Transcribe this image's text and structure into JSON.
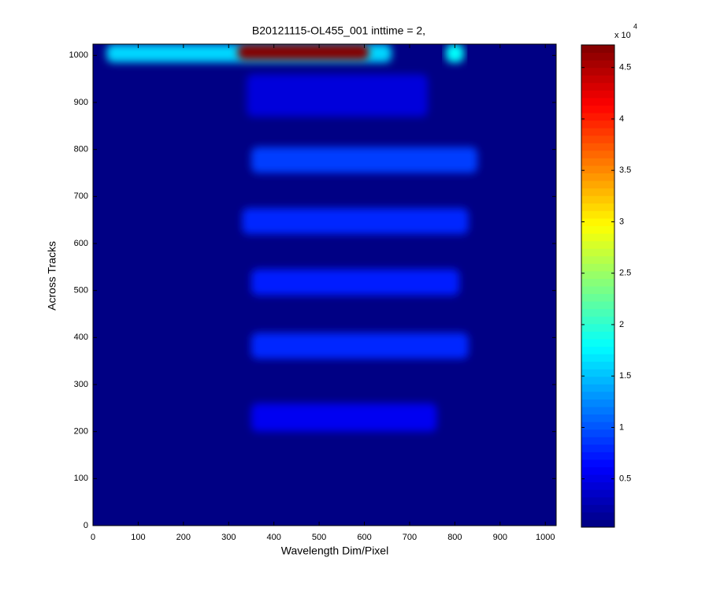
{
  "chart_data": {
    "type": "heatmap",
    "title": "B20121115-OL455_001 inttime = 2,",
    "x_label": "Wavelength Dim/Pixel",
    "y_label": "Across Tracks",
    "xlim": [
      0,
      1024
    ],
    "ylim": [
      0,
      1024
    ],
    "xticks": [
      0,
      100,
      200,
      300,
      400,
      500,
      600,
      700,
      800,
      900,
      1000
    ],
    "yticks": [
      0,
      100,
      200,
      300,
      400,
      500,
      600,
      700,
      800,
      900,
      1000
    ],
    "colormap": "jet",
    "clim": [
      0.03,
      4.72
    ],
    "cticks": [
      0.5,
      1,
      1.5,
      2,
      2.5,
      3,
      3.5,
      4,
      4.5
    ],
    "colorbar_scale": {
      "base": "x 10",
      "exponent": "4"
    },
    "background": 0.05,
    "regions": [
      {
        "x": [
          30,
          660
        ],
        "y": [
          985,
          1024
        ],
        "value": 1.6
      },
      {
        "x": [
          320,
          610
        ],
        "y": [
          990,
          1024
        ],
        "value": 4.7
      },
      {
        "x": [
          780,
          820
        ],
        "y": [
          985,
          1024
        ],
        "value": 1.8
      },
      {
        "x": [
          340,
          740
        ],
        "y": [
          870,
          960
        ],
        "value": 0.45
      },
      {
        "x": [
          350,
          850
        ],
        "y": [
          750,
          805
        ],
        "value": 0.9
      },
      {
        "x": [
          330,
          830
        ],
        "y": [
          620,
          675
        ],
        "value": 0.8
      },
      {
        "x": [
          350,
          810
        ],
        "y": [
          490,
          545
        ],
        "value": 0.75
      },
      {
        "x": [
          350,
          830
        ],
        "y": [
          355,
          410
        ],
        "value": 0.8
      },
      {
        "x": [
          350,
          760
        ],
        "y": [
          200,
          260
        ],
        "value": 0.55
      }
    ]
  }
}
